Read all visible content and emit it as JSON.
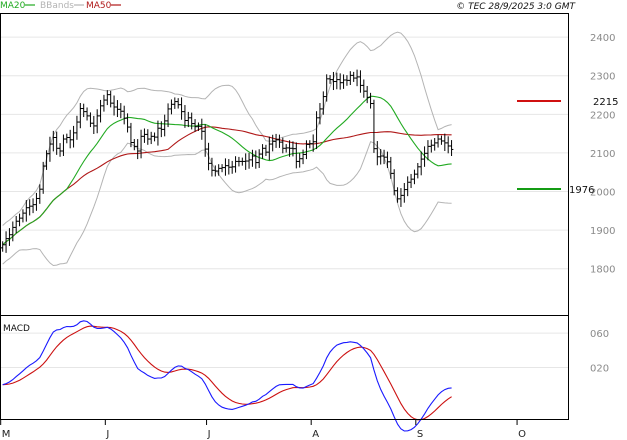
{
  "legend": {
    "ma20": {
      "label": "MA20",
      "color": "#22aa22"
    },
    "bbands": {
      "label": "BBands",
      "color": "#b4b4b4"
    },
    "ma50": {
      "label": "MA50",
      "color": "#b01818"
    }
  },
  "timestamp": "© TEC 28/9/2025 3:0 GMT",
  "macd_title": "MACD",
  "colors": {
    "price": "#000000",
    "macd": "#1a1aff",
    "signal": "#cc1111",
    "resistance": "#d01010",
    "support": "#149c14",
    "grid": "#e6e6e6",
    "frame": "#000000"
  },
  "chart_data": [
    {
      "type": "ohlc",
      "title": "Price",
      "yticks": [
        1800,
        1900,
        2000,
        2100,
        2200,
        2300,
        2400
      ],
      "ylim": [
        1680,
        2460
      ],
      "x_months": [
        "M",
        "J",
        "J",
        "A",
        "S",
        "O"
      ],
      "x_month_starts": [
        0,
        31,
        61,
        92,
        123,
        153
      ],
      "xlim": [
        0,
        168
      ],
      "closes": [
        1862,
        1878,
        1888,
        1907,
        1923,
        1931,
        1944,
        1958,
        1962,
        1966,
        1982,
        2006,
        2066,
        2098,
        2123,
        2140,
        2112,
        2105,
        2136,
        2140,
        2134,
        2152,
        2180,
        2215,
        2207,
        2196,
        2177,
        2170,
        2196,
        2222,
        2237,
        2251,
        2229,
        2219,
        2213,
        2208,
        2190,
        2167,
        2127,
        2117,
        2105,
        2143,
        2148,
        2136,
        2143,
        2141,
        2164,
        2161,
        2183,
        2214,
        2226,
        2233,
        2225,
        2207,
        2184,
        2191,
        2176,
        2168,
        2169,
        2156,
        2110,
        2073,
        2055,
        2053,
        2060,
        2062,
        2067,
        2063,
        2064,
        2078,
        2078,
        2078,
        2079,
        2082,
        2092,
        2075,
        2097,
        2112,
        2102,
        2123,
        2130,
        2134,
        2128,
        2112,
        2113,
        2112,
        2111,
        2078,
        2085,
        2096,
        2122,
        2124,
        2129,
        2191,
        2214,
        2246,
        2292,
        2290,
        2285,
        2290,
        2282,
        2289,
        2288,
        2301,
        2294,
        2297,
        2275,
        2260,
        2244,
        2228,
        2111,
        2090,
        2092,
        2089,
        2077,
        2047,
        2002,
        1981,
        1990,
        2005,
        2024,
        2032,
        2045,
        2064,
        2084,
        2099,
        2117,
        2120,
        2126,
        2136,
        2131,
        2126,
        2118,
        2109
      ],
      "resistance": {
        "value": 2215,
        "label": "2215"
      },
      "support": {
        "value": 1976,
        "label": "1976"
      }
    },
    {
      "type": "line",
      "title": "MACD",
      "yticks": [
        20,
        60
      ],
      "ytick_labels": [
        "020",
        "060"
      ],
      "ylim": [
        -40,
        80
      ],
      "xlim": [
        0,
        168
      ]
    }
  ]
}
